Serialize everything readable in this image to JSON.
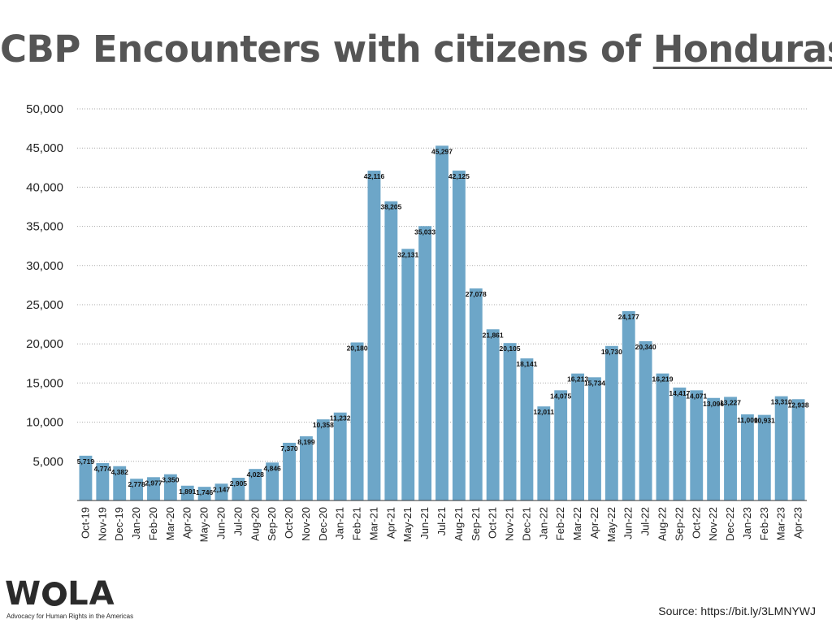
{
  "title": {
    "prefix": "CBP Encounters with citizens of ",
    "country": "Honduras"
  },
  "source": "Source: https://bit.ly/3LMNYWJ",
  "logo": {
    "word_left": "W",
    "word_right": "LA",
    "tagline": "Advocacy for Human Rights in the Americas"
  },
  "colors": {
    "bar": "#6da6c8",
    "title": "#555555",
    "grid": "#aaaaaa",
    "text": "#222222"
  },
  "chart_data": {
    "type": "bar",
    "title": "CBP Encounters with citizens of Honduras",
    "ylim": [
      0,
      50000
    ],
    "yticks": [
      5000,
      10000,
      15000,
      20000,
      25000,
      30000,
      35000,
      40000,
      45000,
      50000
    ],
    "ytick_labels": [
      "5,000",
      "10,000",
      "15,000",
      "20,000",
      "25,000",
      "30,000",
      "35,000",
      "40,000",
      "45,000",
      "50,000"
    ],
    "grid": "horizontal dotted",
    "categories": [
      "Oct-19",
      "Nov-19",
      "Dec-19",
      "Jan-20",
      "Feb-20",
      "Mar-20",
      "Apr-20",
      "May-20",
      "Jun-20",
      "Jul-20",
      "Aug-20",
      "Sep-20",
      "Oct-20",
      "Nov-20",
      "Dec-20",
      "Jan-21",
      "Feb-21",
      "Mar-21",
      "Apr-21",
      "May-21",
      "Jun-21",
      "Jul-21",
      "Aug-21",
      "Sep-21",
      "Oct-21",
      "Nov-21",
      "Dec-21",
      "Jan-22",
      "Feb-22",
      "Mar-22",
      "Apr-22",
      "May-22",
      "Jun-22",
      "Jul-22",
      "Aug-22",
      "Sep-22",
      "Oct-22",
      "Nov-22",
      "Dec-22",
      "Jan-23",
      "Feb-23",
      "Mar-23",
      "Apr-23"
    ],
    "values": [
      5719,
      4774,
      4382,
      2778,
      2977,
      3350,
      1891,
      1746,
      2147,
      2905,
      4028,
      4846,
      7370,
      8199,
      10358,
      11232,
      20180,
      42116,
      38205,
      32131,
      35033,
      45297,
      42125,
      27078,
      21861,
      20105,
      18141,
      12011,
      14075,
      16213,
      15734,
      19730,
      24177,
      20340,
      16219,
      14417,
      14071,
      13096,
      13227,
      11000,
      10931,
      13310,
      12938
    ],
    "value_labels": [
      "5,719",
      "4,774",
      "4,382",
      "2,778",
      "2,977",
      "3,350",
      "1,891",
      "1,746",
      "2,147",
      "2,905",
      "4,028",
      "4,846",
      "7,370",
      "8,199",
      "10,358",
      "11,232",
      "20,180",
      "42,116",
      "38,205",
      "32,131",
      "35,033",
      "45,297",
      "42,125",
      "27,078",
      "21,861",
      "20,105",
      "18,141",
      "12,011",
      "14,075",
      "16,213",
      "15,734",
      "19,730",
      "24,177",
      "20,340",
      "16,219",
      "14,417",
      "14,071",
      "13,096",
      "13,227",
      "11,000",
      "10,931",
      "13,310",
      "12,938"
    ]
  }
}
